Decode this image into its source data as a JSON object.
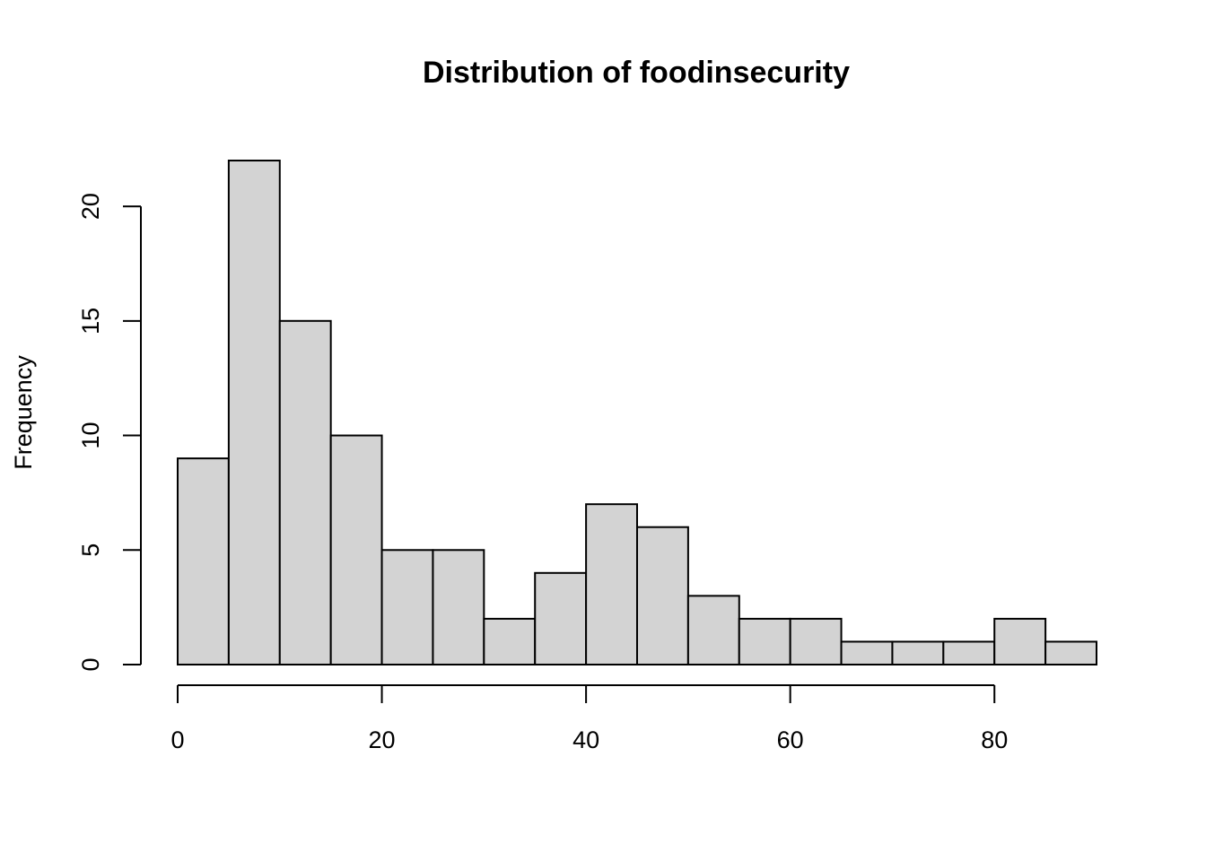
{
  "chart_data": {
    "type": "bar",
    "subtype": "histogram",
    "title": "Distribution of foodinsecurity",
    "xlabel": "",
    "ylabel": "Frequency",
    "bin_width": 5,
    "bins": [
      {
        "x0": 0,
        "x1": 5,
        "count": 9
      },
      {
        "x0": 5,
        "x1": 10,
        "count": 22
      },
      {
        "x0": 10,
        "x1": 15,
        "count": 15
      },
      {
        "x0": 15,
        "x1": 20,
        "count": 10
      },
      {
        "x0": 20,
        "x1": 25,
        "count": 5
      },
      {
        "x0": 25,
        "x1": 30,
        "count": 5
      },
      {
        "x0": 30,
        "x1": 35,
        "count": 2
      },
      {
        "x0": 35,
        "x1": 40,
        "count": 4
      },
      {
        "x0": 40,
        "x1": 45,
        "count": 7
      },
      {
        "x0": 45,
        "x1": 50,
        "count": 6
      },
      {
        "x0": 50,
        "x1": 55,
        "count": 3
      },
      {
        "x0": 55,
        "x1": 60,
        "count": 2
      },
      {
        "x0": 60,
        "x1": 65,
        "count": 2
      },
      {
        "x0": 65,
        "x1": 70,
        "count": 1
      },
      {
        "x0": 70,
        "x1": 75,
        "count": 1
      },
      {
        "x0": 75,
        "x1": 80,
        "count": 1
      },
      {
        "x0": 80,
        "x1": 85,
        "count": 2
      },
      {
        "x0": 85,
        "x1": 90,
        "count": 1
      }
    ],
    "xlim": [
      0,
      90
    ],
    "ylim": [
      0,
      22
    ],
    "x_ticks": [
      0,
      20,
      40,
      60,
      80
    ],
    "y_ticks": [
      0,
      5,
      10,
      15,
      20
    ],
    "x_tick_labels": [
      "0",
      "20",
      "40",
      "60",
      "80"
    ],
    "y_tick_labels": [
      "0",
      "5",
      "10",
      "15",
      "20"
    ],
    "grid": false,
    "legend": "none",
    "colors": {
      "bar_fill": "#d3d3d3",
      "bar_stroke": "#000000",
      "background": "#ffffff"
    }
  }
}
